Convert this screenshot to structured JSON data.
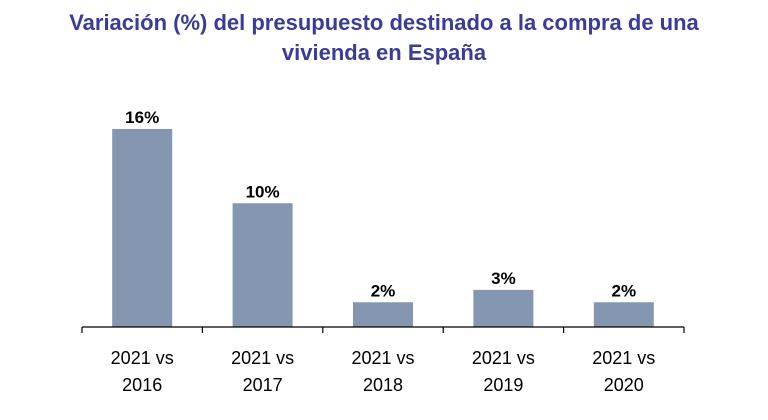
{
  "chart_data": {
    "type": "bar",
    "title_lines": [
      "Variación (%) del presupuesto destinado a la compra de una",
      "vivienda en España"
    ],
    "categories": [
      [
        "2021 vs",
        "2016"
      ],
      [
        "2021 vs",
        "2017"
      ],
      [
        "2021 vs",
        "2018"
      ],
      [
        "2021 vs",
        "2019"
      ],
      [
        "2021 vs",
        "2020"
      ]
    ],
    "values": [
      16,
      10,
      2,
      3,
      2
    ],
    "data_labels": [
      "16%",
      "10%",
      "2%",
      "3%",
      "2%"
    ],
    "xlabel": "",
    "ylabel": "",
    "ylim": [
      0,
      16
    ],
    "grid": false,
    "legend": "none",
    "bar_color": "#8496b0",
    "title_color": "#3b3b9a"
  }
}
